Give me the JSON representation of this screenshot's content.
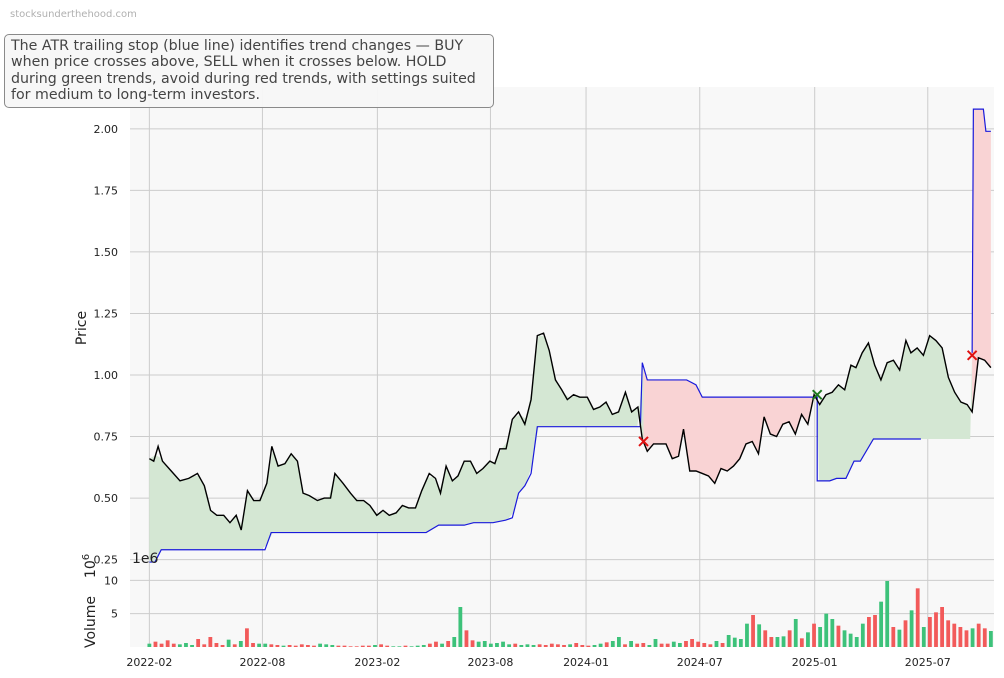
{
  "watermark": "stocksunderthehood.com",
  "annotation": "The ATR trailing stop (blue line) identifies trend changes — BUY when price crosses above, SELL when it crosses below. HOLD during green trends, avoid during red trends, with settings suited for medium to long-term investors.",
  "colors": {
    "price": "#000000",
    "stop": "#1a1adb",
    "green_fill": "#d4e7d3",
    "red_fill": "#f9d3d4",
    "buy_marker": "#1f7a1f",
    "sell_marker": "#e01010",
    "vol_up": "#3dc27a",
    "vol_down": "#f25a5a",
    "panel_bg": "#f8f8f8",
    "grid": "#cccccc"
  },
  "chart_data": [
    {
      "type": "line",
      "ylabel": "Price",
      "ylim": [
        0.22,
        2.17
      ],
      "xlim": [
        "2022-01-01",
        "2025-10-15"
      ],
      "yticks": [
        "0.25",
        "0.50",
        "0.75",
        "1.00",
        "1.25",
        "1.50",
        "1.75",
        "2.00"
      ],
      "xticks": [
        "2022-02",
        "2022-08",
        "2023-02",
        "2023-08",
        "2024-01",
        "2024-07",
        "2025-01",
        "2025-07"
      ],
      "grid": true,
      "series": [
        {
          "role": "price",
          "points": [
            [
              "2022-02-01",
              0.66
            ],
            [
              "2022-02-08",
              0.65
            ],
            [
              "2022-02-15",
              0.71
            ],
            [
              "2022-02-22",
              0.65
            ],
            [
              "2022-03-08",
              0.61
            ],
            [
              "2022-03-22",
              0.57
            ],
            [
              "2022-04-05",
              0.58
            ],
            [
              "2022-04-19",
              0.6
            ],
            [
              "2022-04-30",
              0.55
            ],
            [
              "2022-05-10",
              0.45
            ],
            [
              "2022-05-20",
              0.43
            ],
            [
              "2022-05-31",
              0.43
            ],
            [
              "2022-06-10",
              0.4
            ],
            [
              "2022-06-20",
              0.43
            ],
            [
              "2022-06-28",
              0.37
            ],
            [
              "2022-07-08",
              0.53
            ],
            [
              "2022-07-18",
              0.49
            ],
            [
              "2022-07-28",
              0.49
            ],
            [
              "2022-08-08",
              0.56
            ],
            [
              "2022-08-16",
              0.71
            ],
            [
              "2022-08-26",
              0.63
            ],
            [
              "2022-09-06",
              0.64
            ],
            [
              "2022-09-16",
              0.68
            ],
            [
              "2022-09-26",
              0.65
            ],
            [
              "2022-10-05",
              0.52
            ],
            [
              "2022-10-15",
              0.51
            ],
            [
              "2022-10-28",
              0.49
            ],
            [
              "2022-11-08",
              0.5
            ],
            [
              "2022-11-18",
              0.5
            ],
            [
              "2022-11-25",
              0.6
            ],
            [
              "2022-12-08",
              0.56
            ],
            [
              "2022-12-20",
              0.52
            ],
            [
              "2022-12-30",
              0.49
            ],
            [
              "2023-01-10",
              0.49
            ],
            [
              "2023-01-20",
              0.47
            ],
            [
              "2023-01-31",
              0.43
            ],
            [
              "2023-02-10",
              0.45
            ],
            [
              "2023-02-20",
              0.43
            ],
            [
              "2023-03-03",
              0.44
            ],
            [
              "2023-03-13",
              0.47
            ],
            [
              "2023-03-23",
              0.46
            ],
            [
              "2023-04-03",
              0.46
            ],
            [
              "2023-04-13",
              0.53
            ],
            [
              "2023-04-25",
              0.6
            ],
            [
              "2023-05-05",
              0.58
            ],
            [
              "2023-05-13",
              0.52
            ],
            [
              "2023-05-22",
              0.63
            ],
            [
              "2023-06-01",
              0.57
            ],
            [
              "2023-06-10",
              0.59
            ],
            [
              "2023-06-20",
              0.65
            ],
            [
              "2023-06-30",
              0.65
            ],
            [
              "2023-07-10",
              0.6
            ],
            [
              "2023-07-20",
              0.62
            ],
            [
              "2023-07-31",
              0.65
            ],
            [
              "2023-08-08",
              0.64
            ],
            [
              "2023-08-16",
              0.7
            ],
            [
              "2023-08-26",
              0.7
            ],
            [
              "2023-09-05",
              0.82
            ],
            [
              "2023-09-15",
              0.85
            ],
            [
              "2023-09-25",
              0.8
            ],
            [
              "2023-10-05",
              0.9
            ],
            [
              "2023-10-15",
              1.16
            ],
            [
              "2023-10-25",
              1.17
            ],
            [
              "2023-11-03",
              1.1
            ],
            [
              "2023-11-13",
              0.98
            ],
            [
              "2023-11-23",
              0.94
            ],
            [
              "2023-12-02",
              0.9
            ],
            [
              "2023-12-12",
              0.92
            ],
            [
              "2023-12-22",
              0.91
            ],
            [
              "2024-01-03",
              0.91
            ],
            [
              "2024-01-13",
              0.86
            ],
            [
              "2024-01-23",
              0.87
            ],
            [
              "2024-02-02",
              0.89
            ],
            [
              "2024-02-12",
              0.84
            ],
            [
              "2024-02-22",
              0.85
            ],
            [
              "2024-03-04",
              0.93
            ],
            [
              "2024-03-14",
              0.85
            ],
            [
              "2024-03-24",
              0.87
            ],
            [
              "2024-03-31",
              0.74
            ],
            [
              "2024-04-08",
              0.69
            ],
            [
              "2024-04-18",
              0.72
            ],
            [
              "2024-04-28",
              0.72
            ],
            [
              "2024-05-08",
              0.72
            ],
            [
              "2024-05-18",
              0.66
            ],
            [
              "2024-05-28",
              0.67
            ],
            [
              "2024-06-05",
              0.78
            ],
            [
              "2024-06-15",
              0.61
            ],
            [
              "2024-06-25",
              0.61
            ],
            [
              "2024-07-05",
              0.6
            ],
            [
              "2024-07-15",
              0.59
            ],
            [
              "2024-07-25",
              0.56
            ],
            [
              "2024-08-04",
              0.62
            ],
            [
              "2024-08-14",
              0.61
            ],
            [
              "2024-08-24",
              0.63
            ],
            [
              "2024-09-03",
              0.66
            ],
            [
              "2024-09-13",
              0.72
            ],
            [
              "2024-09-23",
              0.73
            ],
            [
              "2024-10-03",
              0.68
            ],
            [
              "2024-10-12",
              0.83
            ],
            [
              "2024-10-22",
              0.76
            ],
            [
              "2024-11-01",
              0.75
            ],
            [
              "2024-11-11",
              0.8
            ],
            [
              "2024-11-21",
              0.81
            ],
            [
              "2024-12-01",
              0.76
            ],
            [
              "2024-12-11",
              0.84
            ],
            [
              "2024-12-21",
              0.8
            ],
            [
              "2024-12-31",
              0.92
            ],
            [
              "2025-01-09",
              0.88
            ],
            [
              "2025-01-19",
              0.92
            ],
            [
              "2025-01-29",
              0.93
            ],
            [
              "2025-02-08",
              0.96
            ],
            [
              "2025-02-18",
              0.94
            ],
            [
              "2025-02-28",
              1.04
            ],
            [
              "2025-03-08",
              1.03
            ],
            [
              "2025-03-18",
              1.09
            ],
            [
              "2025-03-28",
              1.13
            ],
            [
              "2025-04-07",
              1.04
            ],
            [
              "2025-04-17",
              0.98
            ],
            [
              "2025-04-27",
              1.05
            ],
            [
              "2025-05-07",
              1.06
            ],
            [
              "2025-05-17",
              1.02
            ],
            [
              "2025-05-27",
              1.14
            ],
            [
              "2025-06-04",
              1.09
            ],
            [
              "2025-06-14",
              1.11
            ],
            [
              "2025-06-24",
              1.08
            ],
            [
              "2025-07-04",
              1.16
            ],
            [
              "2025-07-14",
              1.14
            ],
            [
              "2025-07-24",
              1.11
            ],
            [
              "2025-08-03",
              0.99
            ],
            [
              "2025-08-13",
              0.93
            ],
            [
              "2025-08-23",
              0.89
            ],
            [
              "2025-09-02",
              0.88
            ],
            [
              "2025-09-10",
              0.85
            ],
            [
              "2025-09-20",
              1.07
            ],
            [
              "2025-09-30",
              1.06
            ],
            [
              "2025-10-10",
              1.03
            ]
          ]
        },
        {
          "role": "atr_stop",
          "points": [
            [
              "2022-02-01",
              0.24
            ],
            [
              "2022-02-10",
              0.24
            ],
            [
              "2022-02-20",
              0.29
            ],
            [
              "2022-08-05",
              0.29
            ],
            [
              "2022-08-15",
              0.36
            ],
            [
              "2023-04-20",
              0.36
            ],
            [
              "2023-05-10",
              0.39
            ],
            [
              "2023-06-20",
              0.39
            ],
            [
              "2023-07-05",
              0.4
            ],
            [
              "2023-08-05",
              0.4
            ],
            [
              "2023-08-25",
              0.41
            ],
            [
              "2023-09-05",
              0.42
            ],
            [
              "2023-09-15",
              0.52
            ],
            [
              "2023-09-25",
              0.55
            ],
            [
              "2023-10-05",
              0.6
            ],
            [
              "2023-10-15",
              0.79
            ],
            [
              "2024-03-28",
              0.79
            ],
            [
              "2024-03-31",
              1.05
            ],
            [
              "2024-04-08",
              0.98
            ],
            [
              "2024-06-10",
              0.98
            ],
            [
              "2024-06-25",
              0.96
            ],
            [
              "2024-07-05",
              0.91
            ],
            [
              "2024-12-31",
              0.91
            ],
            [
              "2025-01-05",
              0.91
            ],
            [
              "2025-01-05",
              0.57
            ],
            [
              "2025-01-25",
              0.57
            ],
            [
              "2025-02-05",
              0.58
            ],
            [
              "2025-02-20",
              0.58
            ],
            [
              "2025-03-05",
              0.65
            ],
            [
              "2025-03-15",
              0.65
            ],
            [
              "2025-04-05",
              0.74
            ],
            [
              "2025-06-20",
              0.74
            ]
          ]
        }
      ],
      "signals": [
        {
          "type": "sell",
          "date": "2024-04-02",
          "price": 0.73
        },
        {
          "type": "buy",
          "date": "2025-01-05",
          "price": 0.92
        }
      ]
    },
    {
      "type": "bar",
      "ylabel": "Volume",
      "ylabel_exp": "6",
      "yunit": "1e6",
      "yticks": [
        "5",
        "10"
      ],
      "ylim": [
        0,
        12
      ],
      "volume_note": "bars coloured green on up periods, red on down periods"
    }
  ]
}
